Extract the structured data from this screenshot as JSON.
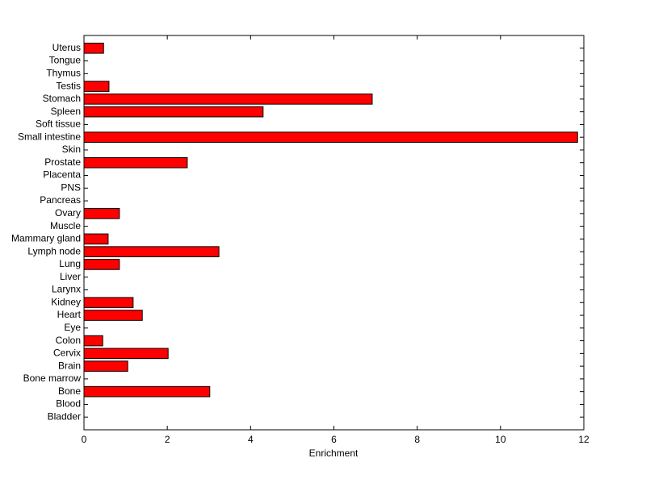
{
  "chart_data": {
    "type": "barh",
    "xlabel": "Enrichment",
    "categories": [
      "Bladder",
      "Blood",
      "Bone",
      "Bone marrow",
      "Brain",
      "Cervix",
      "Colon",
      "Eye",
      "Heart",
      "Kidney",
      "Larynx",
      "Liver",
      "Lung",
      "Lymph node",
      "Mammary gland",
      "Muscle",
      "Ovary",
      "Pancreas",
      "PNS",
      "Placenta",
      "Prostate",
      "Skin",
      "Small intestine",
      "Soft tissue",
      "Spleen",
      "Stomach",
      "Testis",
      "Thymus",
      "Tongue",
      "Uterus"
    ],
    "values": [
      0,
      0,
      3.02,
      0,
      1.05,
      2.02,
      0.45,
      0,
      1.4,
      1.18,
      0,
      0,
      0.85,
      3.24,
      0.58,
      0,
      0.85,
      0,
      0,
      0,
      2.48,
      0,
      11.85,
      0,
      4.3,
      6.92,
      0.6,
      0,
      0,
      0.47
    ],
    "color": "#ff0000",
    "xlim": [
      0,
      12
    ],
    "xticks": [
      0,
      2,
      4,
      6,
      8,
      10,
      12
    ]
  }
}
